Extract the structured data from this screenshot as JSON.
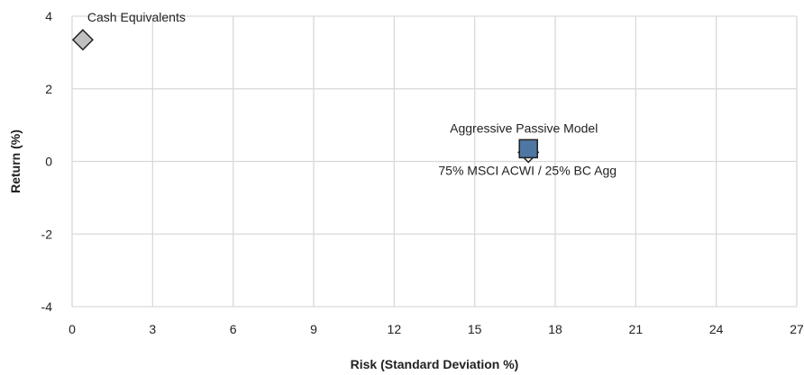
{
  "chart_data": {
    "type": "scatter",
    "title": "",
    "xlabel": "Risk (Standard Deviation %)",
    "ylabel": "Return (%)",
    "xlim": [
      0,
      27
    ],
    "ylim": [
      -4,
      4
    ],
    "x_ticks": [
      0,
      3,
      6,
      9,
      12,
      15,
      18,
      21,
      24,
      27
    ],
    "y_ticks": [
      -4,
      -2,
      0,
      2,
      4
    ],
    "grid": true,
    "points": [
      {
        "label": "Cash Equivalents",
        "x": 0.4,
        "y": 3.35,
        "marker": "diamond",
        "color": "#c0c0c0",
        "label_position": "above-right"
      },
      {
        "label": "75% MSCI ACWI / 25% BC Agg",
        "x": 17.0,
        "y": 0.25,
        "marker": "diamond",
        "color": "#ffffff",
        "label_position": "below"
      },
      {
        "label": "Aggressive Passive Model",
        "x": 17.0,
        "y": 0.35,
        "marker": "square",
        "color": "#4f77a4",
        "label_position": "above"
      }
    ]
  }
}
